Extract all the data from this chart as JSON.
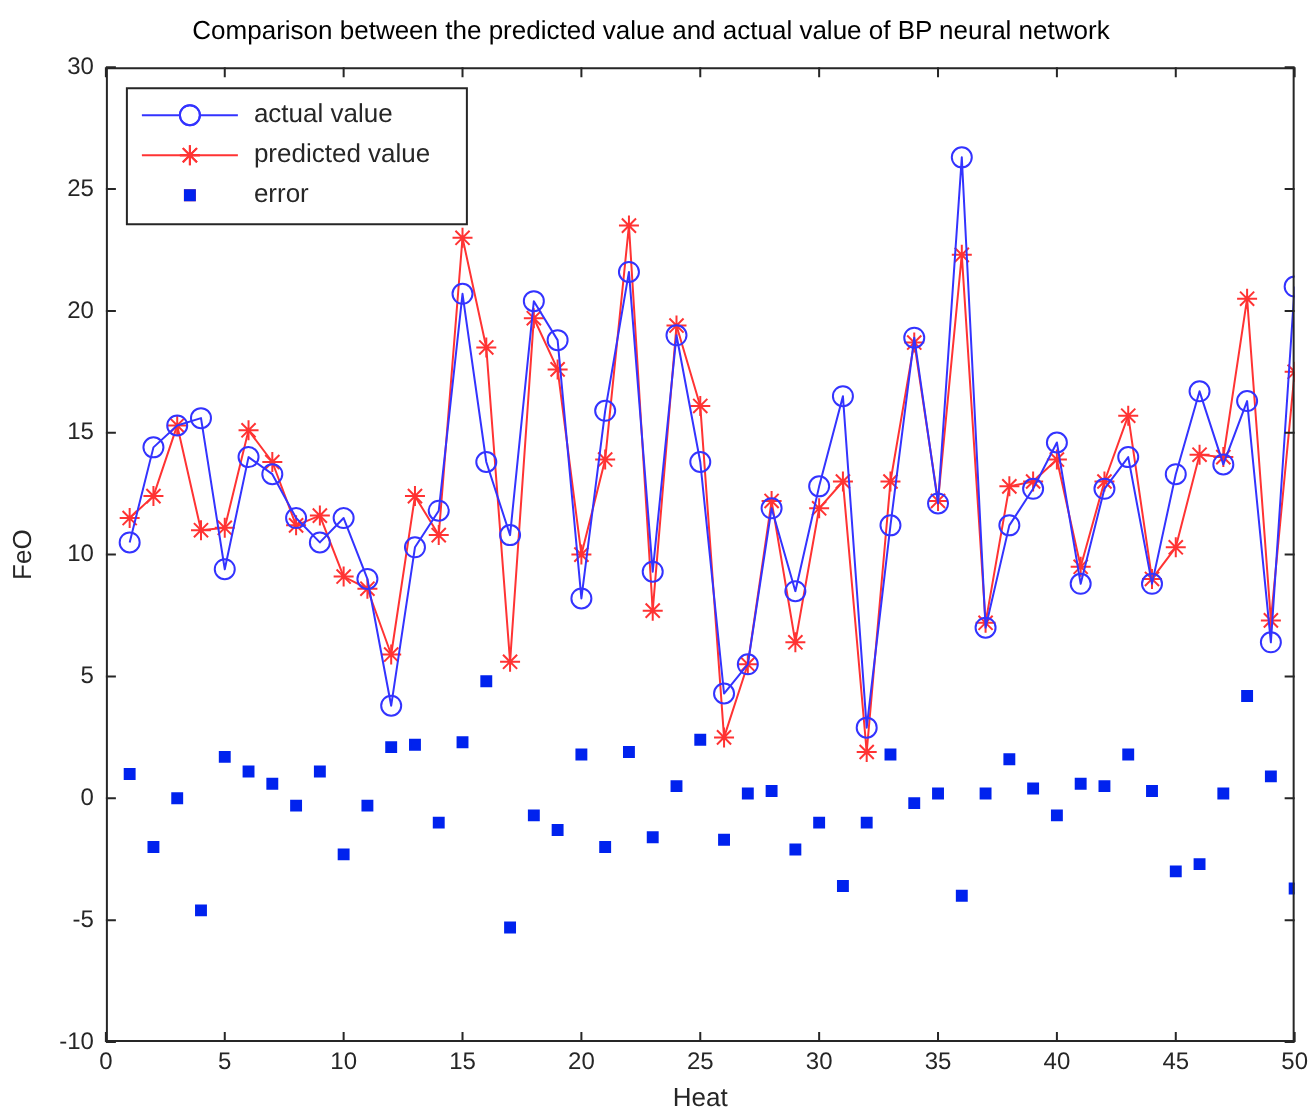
{
  "chart_data": {
    "type": "line",
    "title": "Comparison between the predicted value and actual value of BP neural network",
    "xlabel": "Heat",
    "ylabel": "FeO",
    "x": [
      1,
      2,
      3,
      4,
      5,
      6,
      7,
      8,
      9,
      10,
      11,
      12,
      13,
      14,
      15,
      16,
      17,
      18,
      19,
      20,
      21,
      22,
      23,
      24,
      25,
      26,
      27,
      28,
      29,
      30,
      31,
      32,
      33,
      34,
      35,
      36,
      37,
      38,
      39,
      40,
      41,
      42,
      43,
      44,
      45,
      46,
      47,
      48,
      49,
      50
    ],
    "series": [
      {
        "name": "actual value",
        "marker": "circle",
        "color": "#3333ff",
        "values": [
          10.5,
          14.4,
          15.3,
          15.6,
          9.4,
          14.0,
          13.3,
          11.5,
          10.5,
          11.5,
          9.0,
          3.8,
          10.3,
          11.8,
          20.7,
          13.8,
          10.8,
          20.4,
          18.8,
          8.2,
          15.9,
          21.6,
          9.3,
          19.0,
          13.8,
          4.3,
          5.5,
          11.9,
          8.5,
          12.8,
          16.5,
          2.9,
          11.2,
          18.9,
          12.1,
          26.3,
          7.0,
          11.2,
          12.7,
          14.6,
          8.8,
          12.7,
          14.0,
          8.8,
          13.3,
          16.7,
          13.7,
          16.3,
          6.4,
          21.0
        ]
      },
      {
        "name": "predicted value",
        "marker": "cross",
        "color": "#ff3333",
        "values": [
          11.5,
          12.4,
          15.3,
          11.0,
          11.1,
          15.1,
          13.8,
          11.2,
          11.6,
          9.1,
          8.6,
          5.9,
          12.4,
          10.8,
          23.0,
          18.5,
          5.6,
          19.7,
          17.6,
          10.0,
          13.9,
          23.5,
          7.7,
          19.4,
          16.1,
          2.5,
          5.5,
          12.2,
          6.4,
          11.9,
          13.0,
          1.9,
          13.0,
          18.7,
          12.2,
          22.3,
          7.2,
          12.8,
          13.0,
          13.9,
          9.5,
          13.0,
          15.7,
          9.0,
          10.3,
          14.1,
          14.0,
          20.5,
          7.3,
          17.5
        ]
      },
      {
        "name": "error",
        "type": "scatter",
        "marker": "square",
        "color": "#0022ee",
        "values": [
          1.0,
          -2.0,
          0.0,
          -4.6,
          1.7,
          1.1,
          0.6,
          -0.3,
          1.1,
          -2.3,
          -0.3,
          2.1,
          2.2,
          -1.0,
          2.3,
          4.8,
          -5.3,
          -0.7,
          -1.3,
          1.8,
          -2.0,
          1.9,
          -1.6,
          0.5,
          2.4,
          -1.7,
          0.2,
          0.3,
          -2.1,
          -1.0,
          -3.6,
          -1.0,
          1.8,
          -0.2,
          0.2,
          -4.0,
          0.2,
          1.6,
          0.4,
          -0.7,
          0.6,
          0.5,
          1.8,
          0.3,
          -3.0,
          -2.7,
          0.2,
          4.2,
          0.9,
          -3.7
        ]
      }
    ],
    "xlim": [
      0,
      50
    ],
    "xticks": [
      0,
      5,
      10,
      15,
      20,
      25,
      30,
      35,
      40,
      45,
      50
    ],
    "ylim": [
      -10,
      30
    ],
    "yticks": [
      -10,
      -5,
      0,
      5,
      10,
      15,
      20,
      25,
      30
    ],
    "grid": false,
    "legend": "top left"
  }
}
